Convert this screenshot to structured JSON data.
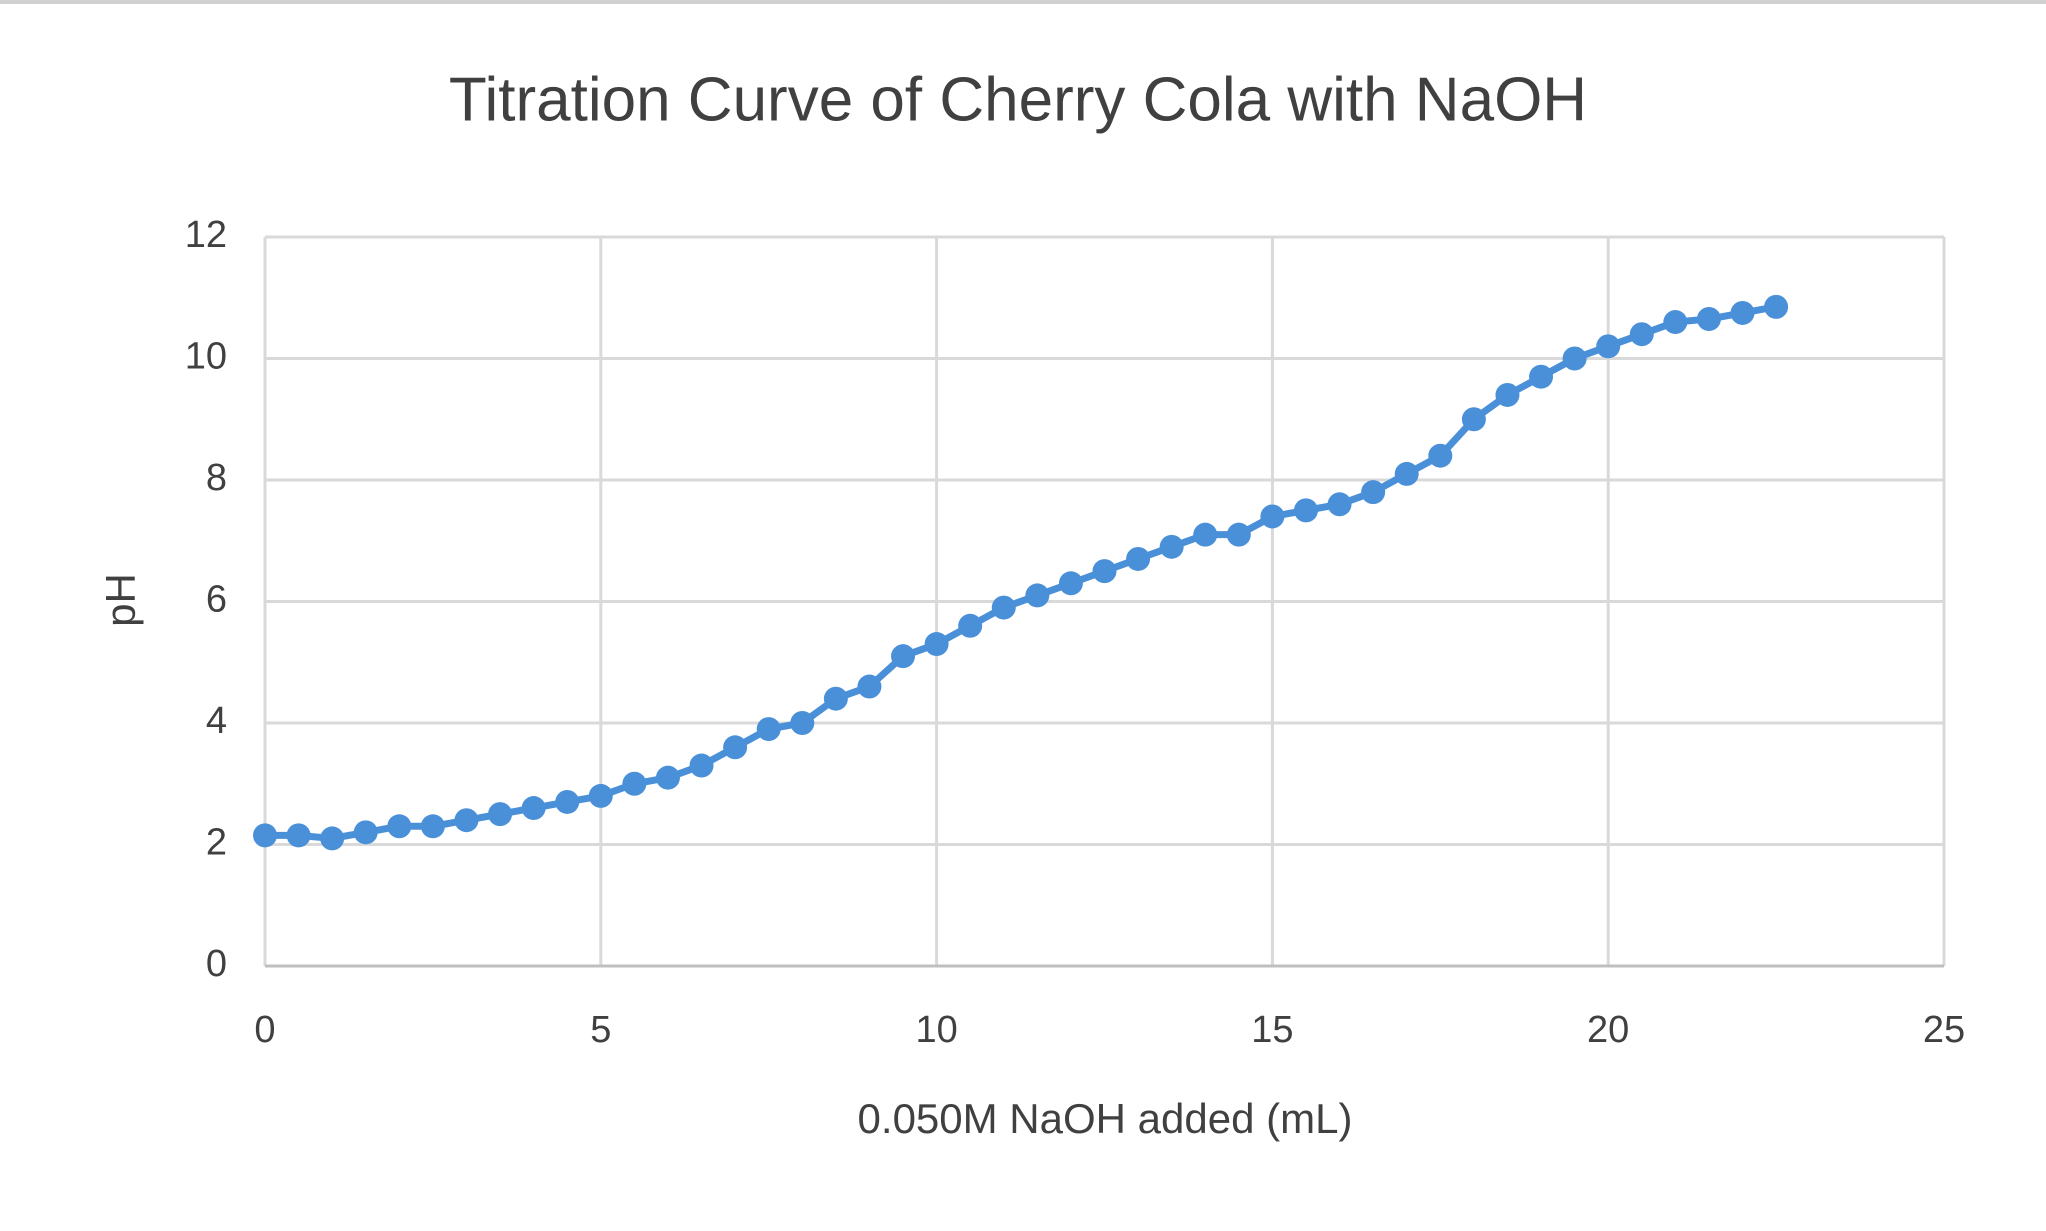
{
  "chart_data": {
    "type": "scatter",
    "title": "Titration Curve of Cherry Cola with NaOH",
    "xlabel": "0.050M NaOH added (mL)",
    "ylabel": "pH",
    "x": [
      0,
      0.5,
      1,
      1.5,
      2,
      2.5,
      3,
      3.5,
      4,
      4.5,
      5,
      5.5,
      6,
      6.5,
      7,
      7.5,
      8,
      8.5,
      9,
      9.5,
      10,
      10.5,
      11,
      11.5,
      12,
      12.5,
      13,
      13.5,
      14,
      14.5,
      15,
      15.5,
      16,
      16.5,
      17,
      17.5,
      18,
      18.5,
      19,
      19.5,
      20,
      20.5,
      21,
      21.5,
      22,
      22.5
    ],
    "values": [
      2.15,
      2.15,
      2.1,
      2.2,
      2.3,
      2.3,
      2.4,
      2.5,
      2.6,
      2.7,
      2.8,
      3.0,
      3.1,
      3.3,
      3.6,
      3.9,
      4.0,
      4.4,
      4.6,
      5.1,
      5.3,
      5.6,
      5.9,
      6.1,
      6.3,
      6.5,
      6.7,
      6.9,
      7.1,
      7.1,
      7.4,
      7.5,
      7.6,
      7.8,
      8.1,
      8.4,
      9.0,
      9.4,
      9.7,
      10.0,
      10.2,
      10.4,
      10.6,
      10.65,
      10.75,
      10.85
    ],
    "color": "#4a90d9",
    "xlim": [
      0,
      25
    ],
    "xticks": [
      0,
      5,
      10,
      15,
      20,
      25
    ],
    "ylim": [
      0,
      12
    ],
    "yticks": [
      0,
      2,
      4,
      6,
      8,
      10,
      12
    ],
    "grid": true,
    "line": true
  }
}
